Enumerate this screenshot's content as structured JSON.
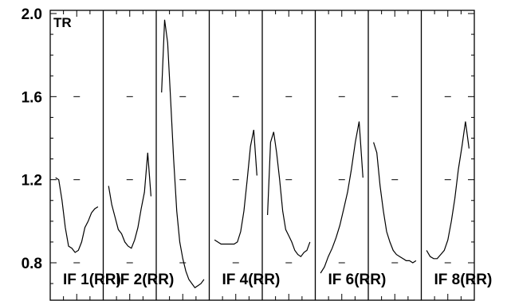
{
  "chart_data": {
    "type": "line",
    "title": "",
    "corner_label": "TR",
    "xlabel": "",
    "ylabel": "",
    "ylim": [
      0.68,
      2.02
    ],
    "yticks": [
      {
        "value": 0.8,
        "label": "0.8"
      },
      {
        "value": 1.2,
        "label": "1.2"
      },
      {
        "value": 1.6,
        "label": "1.6"
      },
      {
        "value": 2.0,
        "label": "2.0"
      }
    ],
    "grid": false,
    "panels": [
      {
        "label": "IF 1(RR)",
        "values": [
          1.21,
          1.2,
          1.1,
          0.97,
          0.88,
          0.87,
          0.85,
          0.86,
          0.9,
          0.97,
          1.0,
          1.04,
          1.06,
          1.07
        ]
      },
      {
        "label": "IF 2(RR)",
        "values": [
          1.17,
          1.08,
          1.02,
          0.96,
          0.94,
          0.9,
          0.88,
          0.87,
          0.91,
          0.97,
          1.06,
          1.14,
          1.33,
          1.12
        ]
      },
      {
        "label": "",
        "values": [
          1.62,
          1.97,
          1.86,
          1.58,
          1.3,
          1.05,
          0.9,
          0.82,
          0.76,
          0.72,
          0.7,
          0.68,
          0.69,
          0.7,
          0.72
        ]
      },
      {
        "label": "IF 4(RR)",
        "values": [
          0.91,
          0.9,
          0.89,
          0.89,
          0.89,
          0.89,
          0.89,
          0.9,
          0.95,
          1.05,
          1.2,
          1.36,
          1.44,
          1.22
        ]
      },
      {
        "label": "",
        "values": [
          1.03,
          1.38,
          1.43,
          1.33,
          1.2,
          1.05,
          0.96,
          0.93,
          0.9,
          0.86,
          0.84,
          0.83,
          0.85,
          0.86,
          0.9
        ]
      },
      {
        "label": "IF 6(RR)",
        "values": [
          0.75,
          0.78,
          0.83,
          0.87,
          0.92,
          0.98,
          1.06,
          1.14,
          1.25,
          1.38,
          1.48,
          1.21
        ]
      },
      {
        "label": "",
        "values": [
          1.38,
          1.33,
          1.17,
          1.05,
          0.95,
          0.9,
          0.86,
          0.84,
          0.83,
          0.82,
          0.81,
          0.81,
          0.8,
          0.81
        ]
      },
      {
        "label": "IF 8(RR)",
        "values": [
          0.86,
          0.83,
          0.82,
          0.82,
          0.84,
          0.86,
          0.91,
          1.0,
          1.11,
          1.25,
          1.36,
          1.48,
          1.35
        ]
      }
    ]
  }
}
